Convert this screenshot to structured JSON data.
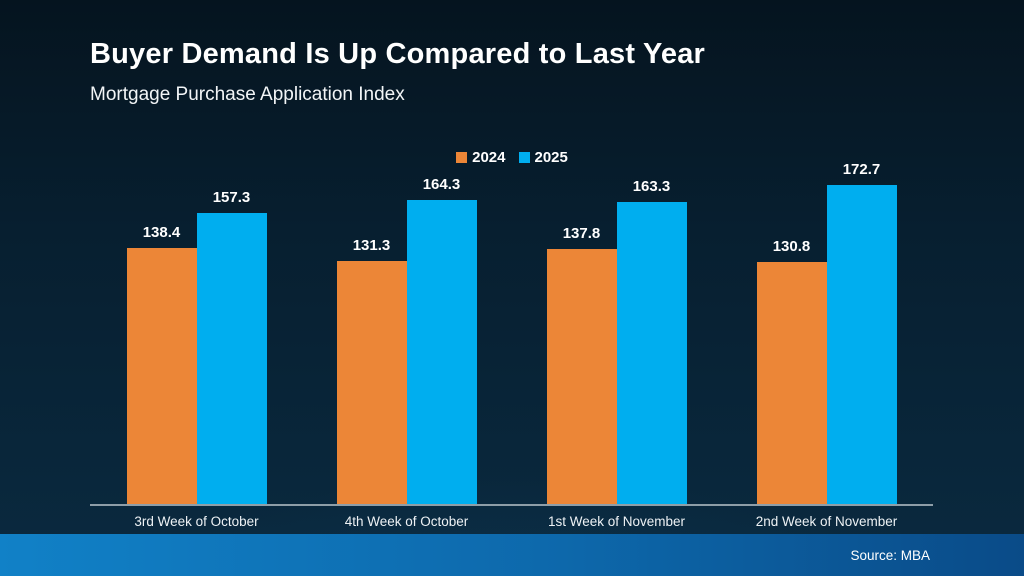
{
  "header": {
    "title": "Buyer Demand Is Up Compared to Last Year",
    "subtitle": "Mortgage Purchase Application Index"
  },
  "chart_data": {
    "type": "bar",
    "title": "Buyer Demand Is Up Compared to Last Year",
    "subtitle": "Mortgage Purchase Application Index",
    "categories": [
      "3rd Week of October",
      "4th Week of October",
      "1st Week of November",
      "2nd Week of November"
    ],
    "series": [
      {
        "name": "2024",
        "color": "#EC8637",
        "values": [
          138.4,
          131.3,
          137.8,
          130.8
        ]
      },
      {
        "name": "2025",
        "color": "#00AEEF",
        "values": [
          157.3,
          164.3,
          163.3,
          172.7
        ]
      }
    ],
    "ylim": [
      0,
      180
    ],
    "grid": false,
    "legend_position": "top-center",
    "value_labels": true,
    "ylabel": "",
    "xlabel": ""
  },
  "footer": {
    "source": "Source: MBA"
  },
  "colors": {
    "background_top": "#05141f",
    "background_bottom": "#0a2a40",
    "axis_line": "#8e9ea8",
    "text": "#ffffff",
    "footer_gradient_left": "#1181c7",
    "footer_gradient_mid": "#0d68ab",
    "footer_gradient_right": "#0a4b88",
    "series_2024": "#EC8637",
    "series_2025": "#00AEEF"
  }
}
